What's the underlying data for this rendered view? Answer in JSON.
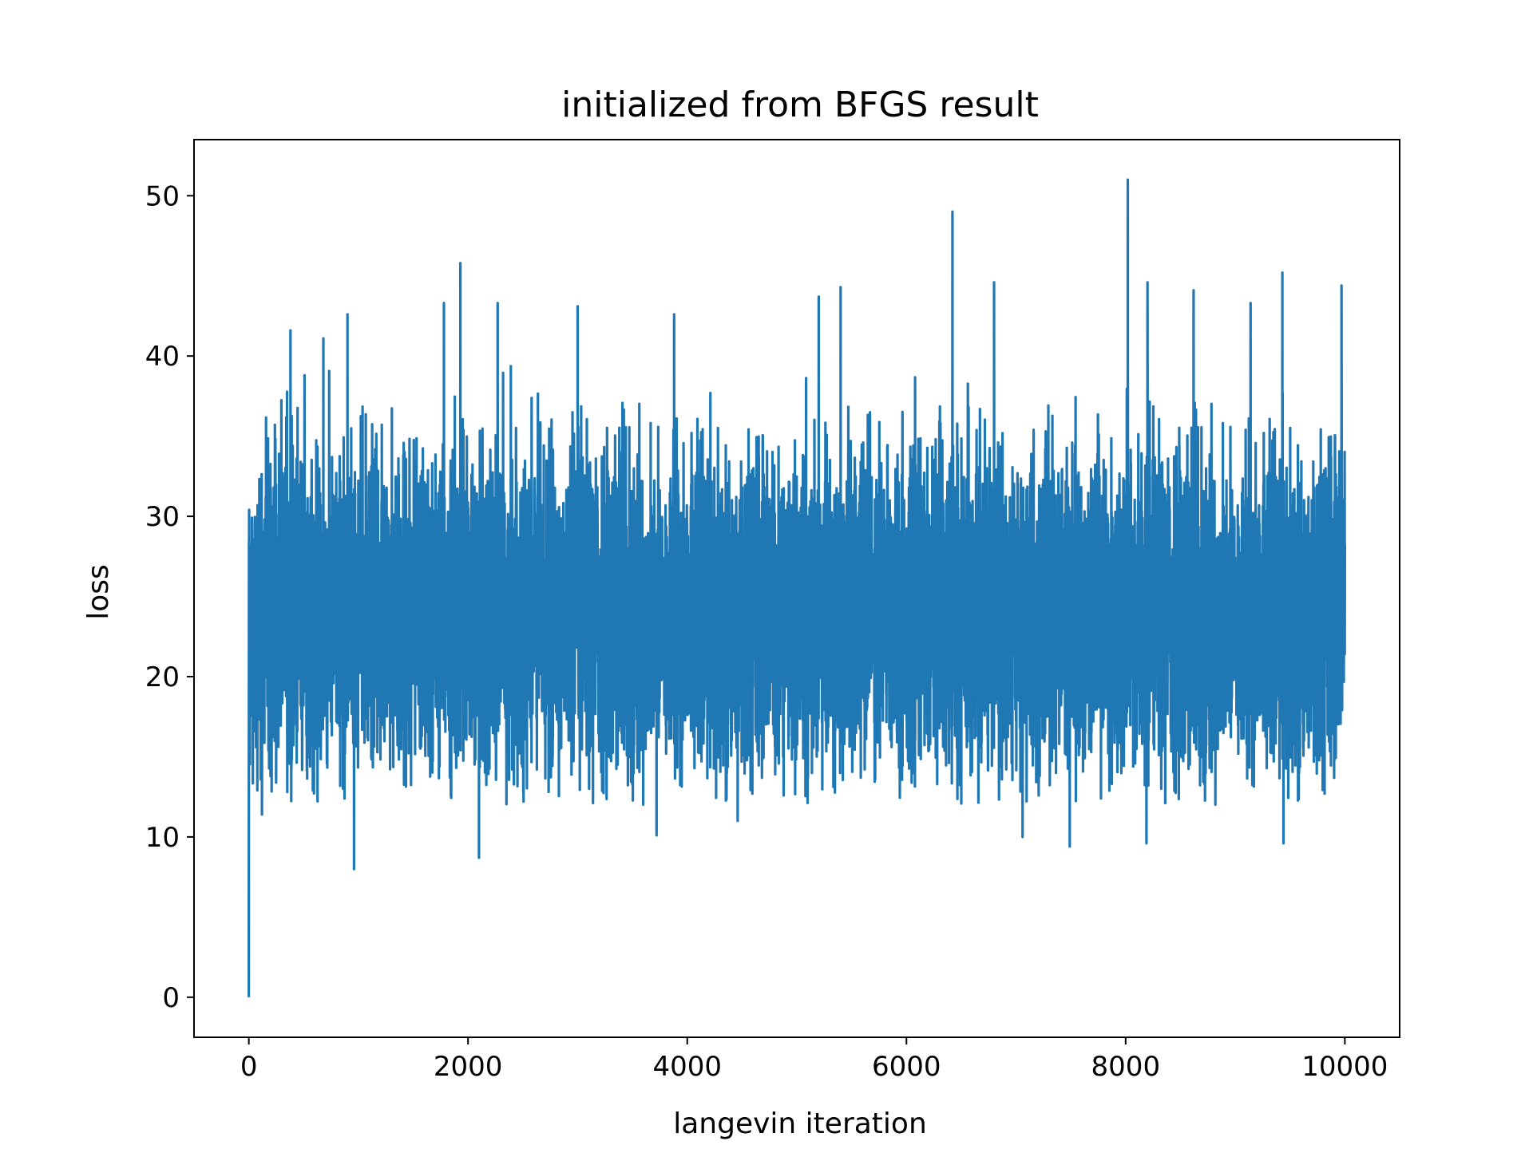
{
  "chart_data": {
    "type": "line",
    "title": "initialized from BFGS result",
    "xlabel": "langevin iteration",
    "ylabel": "loss",
    "xlim": [
      -500,
      10500
    ],
    "ylim": [
      -2.5,
      53.5
    ],
    "xticks": [
      0,
      2000,
      4000,
      6000,
      8000,
      10000
    ],
    "yticks": [
      0,
      10,
      20,
      30,
      40,
      50
    ],
    "grid": false,
    "legend": "none",
    "series": [
      {
        "color": "#1f77b4",
        "x_range": [
          0,
          10000
        ],
        "point_count": 10000,
        "first_value": 0,
        "typical_range": [
          15,
          35
        ],
        "mean": 24,
        "peaks": [
          {
            "x": 120,
            "y": 41.0
          },
          {
            "x": 380,
            "y": 41.6
          },
          {
            "x": 680,
            "y": 41.1
          },
          {
            "x": 900,
            "y": 42.6
          },
          {
            "x": 1780,
            "y": 43.3
          },
          {
            "x": 1930,
            "y": 45.8
          },
          {
            "x": 2270,
            "y": 43.3
          },
          {
            "x": 3000,
            "y": 43.1
          },
          {
            "x": 3880,
            "y": 42.6
          },
          {
            "x": 5200,
            "y": 43.7
          },
          {
            "x": 5400,
            "y": 44.3
          },
          {
            "x": 6420,
            "y": 49.0
          },
          {
            "x": 6800,
            "y": 44.6
          },
          {
            "x": 8020,
            "y": 51.0
          },
          {
            "x": 8200,
            "y": 44.6
          },
          {
            "x": 8620,
            "y": 44.1
          },
          {
            "x": 9140,
            "y": 43.3
          },
          {
            "x": 9430,
            "y": 45.2
          },
          {
            "x": 9970,
            "y": 44.4
          }
        ],
        "troughs": [
          {
            "x": 960,
            "y": 8.0
          },
          {
            "x": 2100,
            "y": 8.7
          },
          {
            "x": 3720,
            "y": 10.1
          },
          {
            "x": 7490,
            "y": 9.4
          },
          {
            "x": 8190,
            "y": 9.6
          },
          {
            "x": 9440,
            "y": 9.6
          },
          {
            "x": 7060,
            "y": 10.0
          },
          {
            "x": 120,
            "y": 11.4
          },
          {
            "x": 4460,
            "y": 11.0
          }
        ]
      }
    ]
  }
}
